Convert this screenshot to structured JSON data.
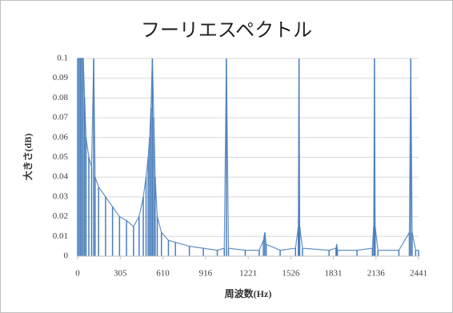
{
  "chart_data": {
    "type": "area",
    "title": "フーリエスペクトル",
    "x_label": "周波数(Hz)",
    "y_label": "大きさ(dB)",
    "color": "#4a7ebb",
    "grid": true,
    "xlim": [
      0,
      2441
    ],
    "ylim": [
      0,
      0.1
    ],
    "xticks": [
      0,
      305,
      610,
      916,
      1221,
      1526,
      1831,
      2136,
      2441
    ],
    "yticks": [
      0,
      0.01,
      0.02,
      0.03,
      0.04,
      0.05,
      0.06,
      0.07,
      0.08,
      0.09,
      0.1
    ],
    "x": [
      0,
      10,
      20,
      30,
      40,
      50,
      60,
      80,
      100,
      115,
      125,
      150,
      200,
      250,
      300,
      350,
      400,
      440,
      470,
      490,
      505,
      515,
      525,
      535,
      545,
      555,
      570,
      600,
      650,
      700,
      800,
      900,
      1000,
      1050,
      1065,
      1080,
      1200,
      1300,
      1330,
      1340,
      1350,
      1450,
      1560,
      1580,
      1585,
      1590,
      1610,
      1800,
      1850,
      1855,
      1860,
      2000,
      2110,
      2120,
      2125,
      2130,
      2150,
      2300,
      2375,
      2385,
      2395,
      2420,
      2441
    ],
    "values": [
      0.1,
      0.1,
      0.1,
      0.1,
      0.1,
      0.08,
      0.06,
      0.05,
      0.045,
      0.1,
      0.04,
      0.035,
      0.03,
      0.025,
      0.02,
      0.018,
      0.015,
      0.02,
      0.03,
      0.04,
      0.05,
      0.06,
      0.075,
      0.1,
      0.07,
      0.04,
      0.02,
      0.012,
      0.008,
      0.007,
      0.005,
      0.004,
      0.003,
      0.004,
      0.1,
      0.004,
      0.003,
      0.003,
      0.008,
      0.012,
      0.006,
      0.003,
      0.004,
      0.015,
      0.1,
      0.015,
      0.004,
      0.003,
      0.004,
      0.006,
      0.003,
      0.003,
      0.004,
      0.015,
      0.1,
      0.015,
      0.003,
      0.003,
      0.012,
      0.1,
      0.012,
      0.003,
      0.003
    ]
  }
}
